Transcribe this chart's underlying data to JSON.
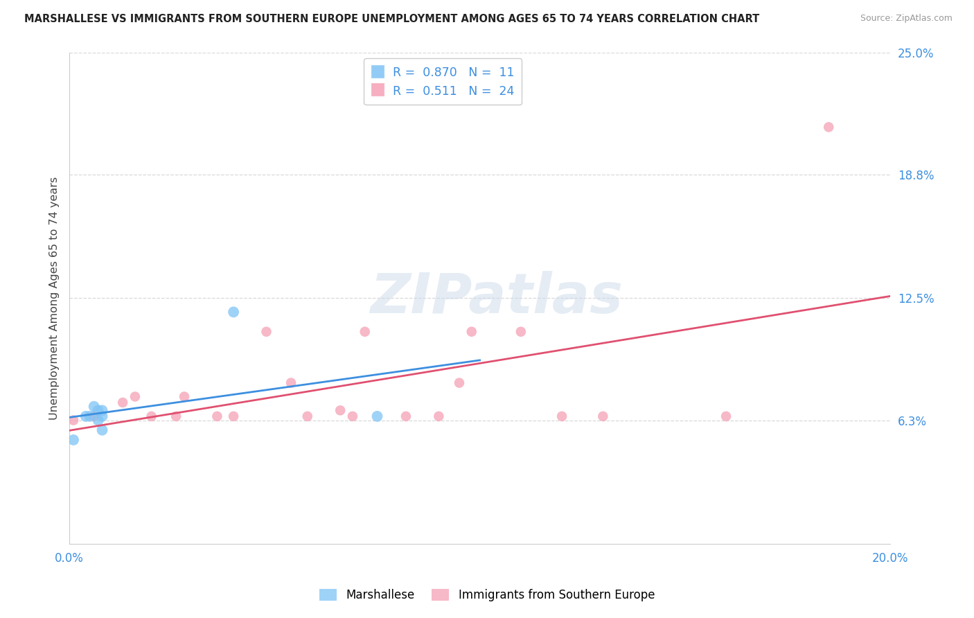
{
  "title": "MARSHALLESE VS IMMIGRANTS FROM SOUTHERN EUROPE UNEMPLOYMENT AMONG AGES 65 TO 74 YEARS CORRELATION CHART",
  "source": "Source: ZipAtlas.com",
  "ylabel": "Unemployment Among Ages 65 to 74 years",
  "xlim": [
    0.0,
    0.2
  ],
  "ylim": [
    0.0,
    0.25
  ],
  "background_color": "#ffffff",
  "grid_color": "#d8d8d8",
  "watermark_text": "ZIPatlas",
  "blue_color": "#7fc4f5",
  "pink_color": "#f5a0b5",
  "blue_line_color": "#3d8fe0",
  "pink_line_color": "#e05070",
  "tick_label_color": "#3d8fe0",
  "legend_R_blue": "0.870",
  "legend_N_blue": "11",
  "legend_R_pink": "0.511",
  "legend_N_pink": "24",
  "marshallese_x": [
    0.001,
    0.004,
    0.005,
    0.006,
    0.007,
    0.007,
    0.008,
    0.008,
    0.008,
    0.04,
    0.075
  ],
  "marshallese_y": [
    0.053,
    0.065,
    0.065,
    0.07,
    0.063,
    0.068,
    0.065,
    0.068,
    0.058,
    0.118,
    0.065
  ],
  "southern_europe_x": [
    0.001,
    0.006,
    0.013,
    0.016,
    0.02,
    0.026,
    0.028,
    0.036,
    0.04,
    0.048,
    0.054,
    0.058,
    0.066,
    0.069,
    0.072,
    0.082,
    0.09,
    0.095,
    0.098,
    0.11,
    0.12,
    0.13,
    0.16,
    0.185
  ],
  "southern_europe_y": [
    0.063,
    0.065,
    0.072,
    0.075,
    0.065,
    0.065,
    0.075,
    0.065,
    0.065,
    0.108,
    0.082,
    0.065,
    0.068,
    0.065,
    0.108,
    0.065,
    0.065,
    0.082,
    0.108,
    0.108,
    0.065,
    0.065,
    0.065,
    0.212
  ],
  "marker_size_blue": 130,
  "marker_size_pink": 110,
  "ytick_vals": [
    0.063,
    0.125,
    0.188,
    0.25
  ],
  "ytick_labels": [
    "6.3%",
    "12.5%",
    "18.8%",
    "25.0%"
  ],
  "xtick_vals": [
    0.0,
    0.05,
    0.1,
    0.15,
    0.2
  ],
  "xtick_labels": [
    "0.0%",
    "",
    "",
    "",
    "20.0%"
  ]
}
